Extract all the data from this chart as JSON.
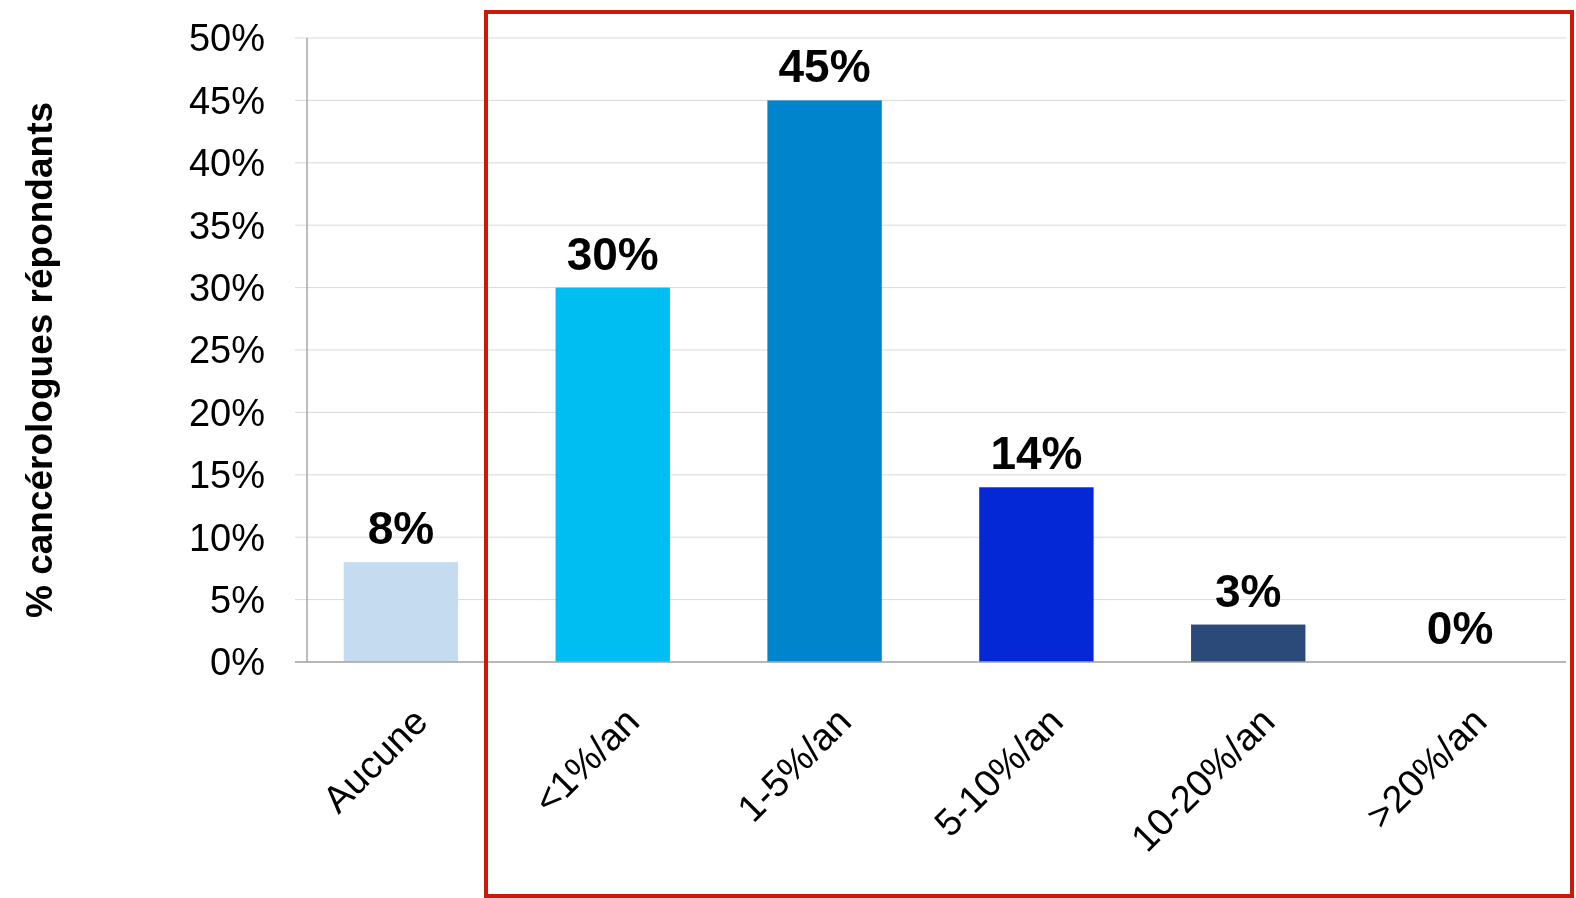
{
  "chart_data": {
    "type": "bar",
    "ylabel": "% cancérologues répondants",
    "categories": [
      "Aucune",
      "<1%/an",
      "1-5%/an",
      "5-10%/an",
      "10-20%/an",
      ">20%/an"
    ],
    "values": [
      8,
      30,
      45,
      14,
      3,
      0
    ],
    "colors": [
      "#c5dcf0",
      "#00bdf2",
      "#0085cc",
      "#0428d6",
      "#2b4a7a",
      "#2b4a7a"
    ],
    "value_labels": [
      "8%",
      "30%",
      "45%",
      "14%",
      "3%",
      "0%"
    ],
    "ylim": [
      0,
      50
    ],
    "yticks": [
      {
        "value": 0,
        "label": "0%"
      },
      {
        "value": 5,
        "label": "5%"
      },
      {
        "value": 10,
        "label": "10%"
      },
      {
        "value": 15,
        "label": "15%"
      },
      {
        "value": 20,
        "label": "20%"
      },
      {
        "value": 25,
        "label": "25%"
      },
      {
        "value": 30,
        "label": "30%"
      },
      {
        "value": 35,
        "label": "35%"
      },
      {
        "value": 40,
        "label": "40%"
      },
      {
        "value": 45,
        "label": "45%"
      },
      {
        "value": 50,
        "label": "50%"
      }
    ],
    "grid": "y"
  }
}
